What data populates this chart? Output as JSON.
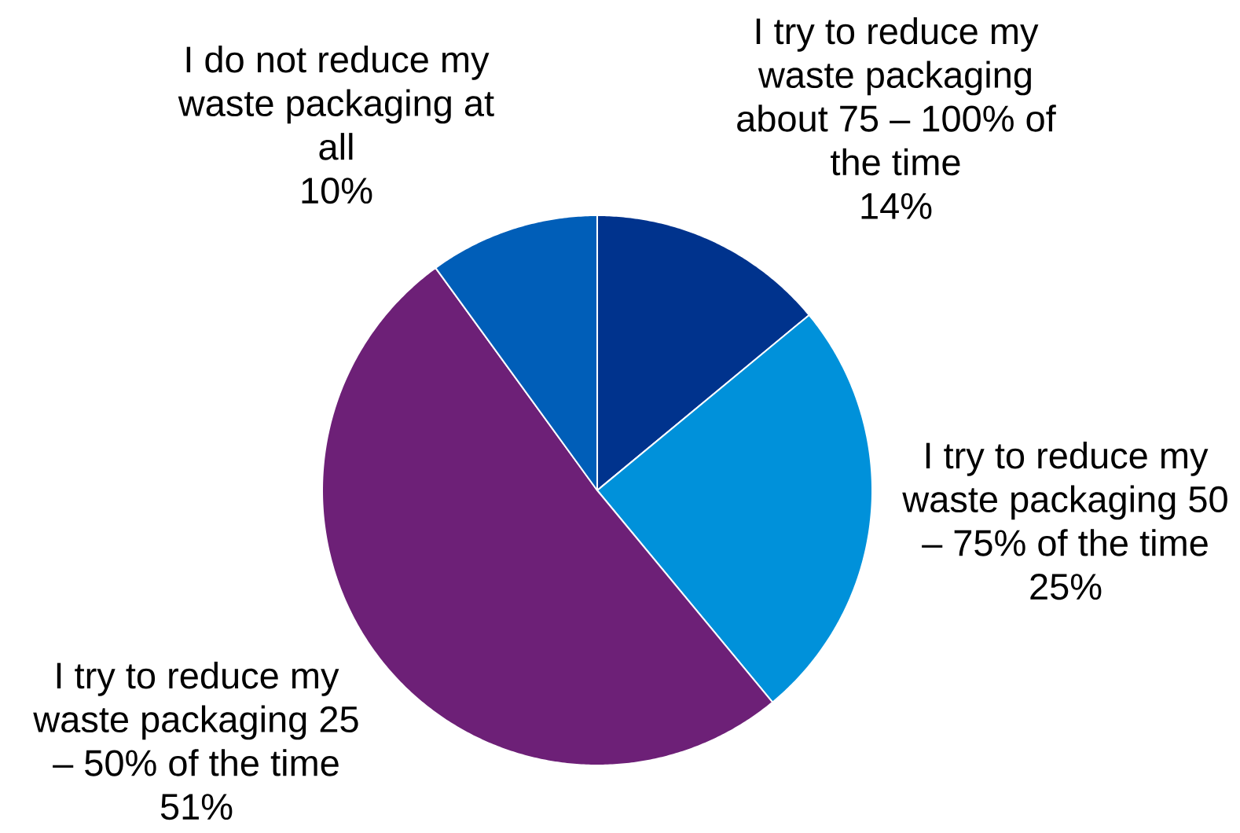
{
  "chart_data": {
    "type": "pie",
    "categories": [
      "I try to reduce my waste packaging about 75 – 100% of the time",
      "I try to reduce my waste packaging 50 – 75% of the time",
      "I try to reduce my waste packaging 25 – 50% of the time",
      "I do not reduce my waste packaging at all"
    ],
    "values": [
      14,
      25,
      51,
      10
    ],
    "colors": [
      "#00338d",
      "#0091da",
      "#6d2077",
      "#005eb8"
    ],
    "value_labels": [
      "14%",
      "25%",
      "51%",
      "10%"
    ]
  }
}
